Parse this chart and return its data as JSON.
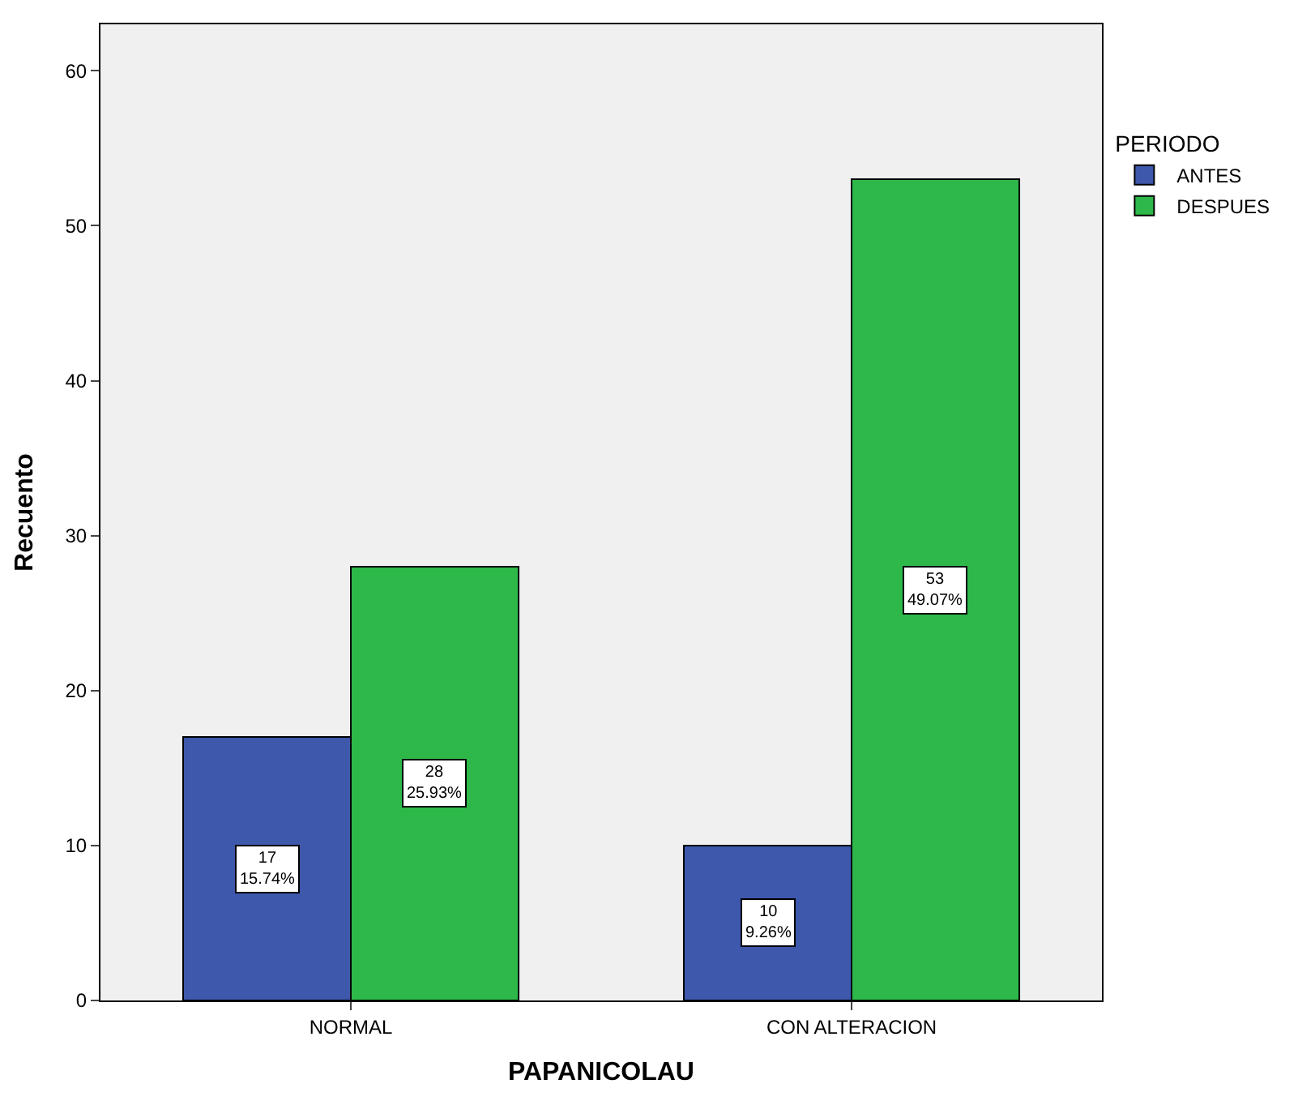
{
  "chart_data": {
    "type": "bar",
    "xlabel": "PAPANICOLAU",
    "ylabel": "Recuento",
    "legend_title": "PERIODO",
    "categories": [
      "NORMAL",
      "CON ALTERACION"
    ],
    "series": [
      {
        "name": "ANTES",
        "color": "#3e58ac",
        "values": [
          17,
          10
        ],
        "value_labels": [
          "17\n15.74%",
          "10\n9.26%"
        ]
      },
      {
        "name": "DESPUES",
        "color": "#2eb84a",
        "values": [
          28,
          53
        ],
        "value_labels": [
          "28\n25.93%",
          "53\n49.07%"
        ]
      }
    ],
    "ylim": [
      0,
      63
    ],
    "yticks": [
      0,
      10,
      20,
      30,
      40,
      50,
      60
    ],
    "grid": false,
    "legend": "right"
  }
}
